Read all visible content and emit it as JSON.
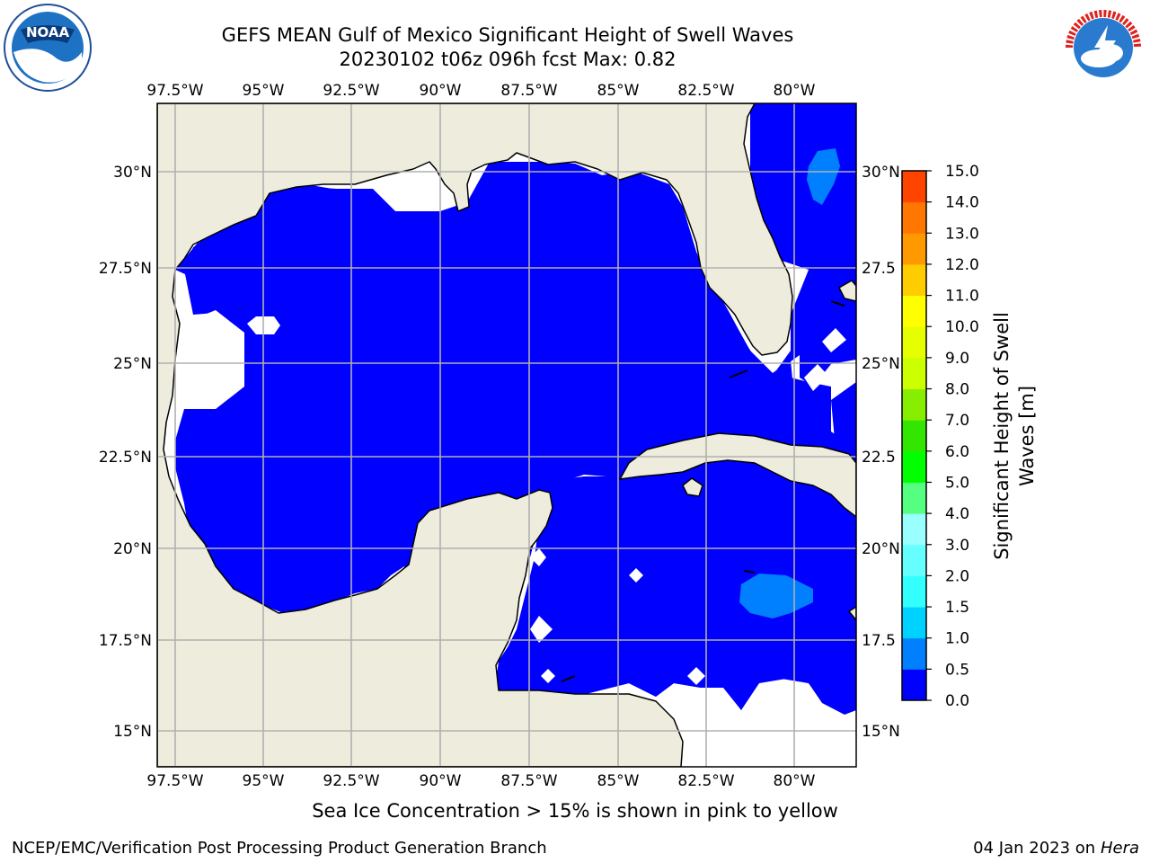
{
  "title": {
    "line1": "GEFS MEAN Gulf of Mexico Significant Height of Swell Waves",
    "line2": "20230102 t06z 096h fcst   Max: 0.82"
  },
  "map": {
    "lon_ticks_top": [
      "97.5°W",
      "95°W",
      "92.5°W",
      "90°W",
      "87.5°W",
      "85°W",
      "82.5°W",
      "80°W"
    ],
    "lon_ticks_bottom": [
      "97.5°W",
      "95°W",
      "92.5°W",
      "90°W",
      "87.5°W",
      "85°W",
      "82.5°W",
      "80°W"
    ],
    "lat_ticks_left": [
      "30°N",
      "27.5°N",
      "25°N",
      "22.5°N",
      "20°N",
      "17.5°N",
      "15°N"
    ],
    "lat_ticks_right": [
      "30°N",
      "27.5",
      "25°N",
      "22.5",
      "20°N",
      "17.5",
      "15°N"
    ],
    "colors": {
      "land": "#eeecdc",
      "low": "#0000fe",
      "mid": "#0080ff",
      "grid": "#b0b0b0"
    }
  },
  "colorbar": {
    "label_line1": "Significant Height of Swell",
    "label_line2": "Waves [m]",
    "ticks": [
      "0.0",
      "0.5",
      "1.0",
      "1.5",
      "2.0",
      "3.0",
      "4.0",
      "5.0",
      "6.0",
      "7.0",
      "8.0",
      "9.0",
      "10.0",
      "11.0",
      "12.0",
      "13.0",
      "14.0",
      "15.0"
    ],
    "colors": [
      "#0000ff",
      "#0080ff",
      "#00d2ff",
      "#33ffff",
      "#66ffff",
      "#99ffff",
      "#55ff80",
      "#00ff00",
      "#33e600",
      "#88ee00",
      "#ccff00",
      "#e6ff00",
      "#ffff00",
      "#ffcc00",
      "#ff9900",
      "#ff7700",
      "#ff4400",
      "#ff0000"
    ]
  },
  "subtitle": "Sea Ice Concentration > 15% is shown in pink to yellow",
  "footer": {
    "left": "NCEP/EMC/Verification Post Processing Product Generation Branch",
    "right_date": "04 Jan 2023 on",
    "right_host": "Hera"
  },
  "logos": {
    "noaa_text": "NOAA",
    "nws_text": "NATIONAL WEATHER SERVICE"
  }
}
